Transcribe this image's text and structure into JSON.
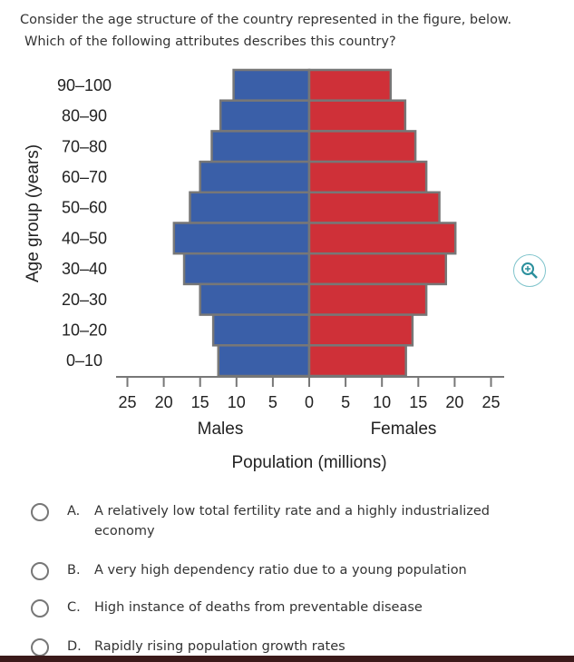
{
  "question": {
    "line1": "Consider the age structure of the country represented in the figure, below.",
    "line2": "Which of the following attributes describes this country?"
  },
  "chart_data": {
    "type": "bar",
    "subtype": "population-pyramid",
    "categories": [
      "90–100",
      "80–90",
      "70–80",
      "60–70",
      "50–60",
      "40–50",
      "30–40",
      "20–30",
      "10–20",
      "0–10"
    ],
    "series": [
      {
        "name": "Males",
        "color": "#3a5fa8",
        "values": [
          10.4,
          12.2,
          13.4,
          15.0,
          16.4,
          18.6,
          17.2,
          15.0,
          13.2,
          12.5
        ]
      },
      {
        "name": "Females",
        "color": "#cf3038",
        "values": [
          11.2,
          13.2,
          14.6,
          16.1,
          17.9,
          20.1,
          18.8,
          16.1,
          14.2,
          13.3
        ]
      }
    ],
    "xticks": [
      "25",
      "20",
      "15",
      "10",
      "5",
      "0",
      "5",
      "10",
      "15",
      "20",
      "25"
    ],
    "xlim": [
      -25,
      25
    ],
    "xlabel": "Population (millions)",
    "ylabel": "Age group (years)",
    "side_labels": {
      "left": "Males",
      "right": "Females"
    },
    "grid": false
  },
  "zoom_icon": "zoom-in-icon",
  "options": [
    {
      "letter": "A.",
      "text": "A relatively low total fertility rate and a highly industrialized economy"
    },
    {
      "letter": "B.",
      "text": "A very high dependency ratio due to a young population"
    },
    {
      "letter": "C.",
      "text": "High instance of deaths from preventable disease"
    },
    {
      "letter": "D.",
      "text": "Rapidly rising population growth rates"
    }
  ]
}
